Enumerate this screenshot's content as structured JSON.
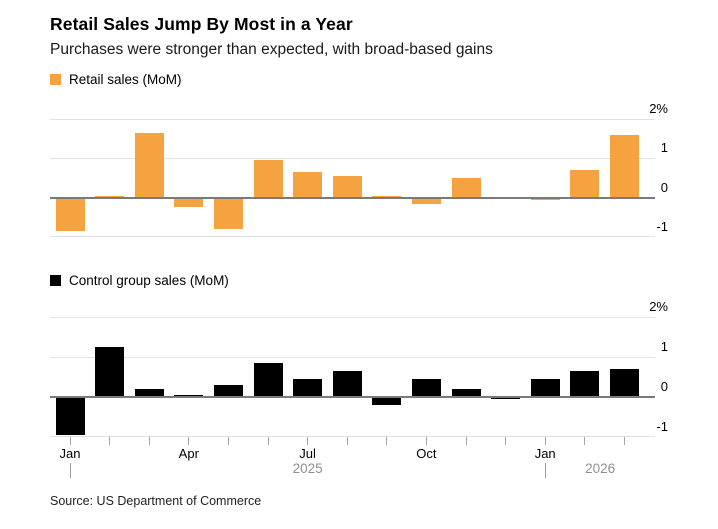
{
  "header": {
    "title": "Retail Sales Jump By Most in a Year",
    "subtitle": "Purchases were stronger than expected, with broad-based gains"
  },
  "footer": {
    "source": "Source: US Department of Commerce"
  },
  "colors": {
    "retail_orange": "#F5A340",
    "control_black": "#000000",
    "gridline": "#E2E2E2",
    "zero_line": "#7A7A7A",
    "muted_text": "#8F8F8F",
    "tick": "#A3A3A3"
  },
  "chart_data": [
    {
      "type": "bar",
      "name": "retail-sales",
      "legend_label": "Retail sales (MoM)",
      "bar_color": "#F5A340",
      "categories": [
        "Jan 2025",
        "Feb 2025",
        "Mar 2025",
        "Apr 2025",
        "May 2025",
        "Jun 2025",
        "Jul 2025",
        "Aug 2025",
        "Sep 2025",
        "Oct 2025",
        "Nov 2025",
        "Dec 2025",
        "Jan 2026",
        "Feb 2026",
        "Mar 2026"
      ],
      "values": [
        -0.85,
        0.05,
        1.65,
        -0.25,
        -0.8,
        0.95,
        0.65,
        0.55,
        0.05,
        -0.15,
        0.5,
        0.0,
        -0.05,
        0.7,
        1.6
      ],
      "ylim": [
        -1,
        2
      ],
      "yticks": [
        {
          "value": 2,
          "label": "2%"
        },
        {
          "value": 1,
          "label": "1"
        },
        {
          "value": 0,
          "label": "0"
        },
        {
          "value": -1,
          "label": "-1"
        }
      ],
      "grid": true,
      "legend_position": "top-left"
    },
    {
      "type": "bar",
      "name": "control-group-sales",
      "legend_label": "Control group sales (MoM)",
      "bar_color": "#000000",
      "categories": [
        "Jan 2025",
        "Feb 2025",
        "Mar 2025",
        "Apr 2025",
        "May 2025",
        "Jun 2025",
        "Jul 2025",
        "Aug 2025",
        "Sep 2025",
        "Oct 2025",
        "Nov 2025",
        "Dec 2025",
        "Jan 2026",
        "Feb 2026",
        "Mar 2026"
      ],
      "values": [
        -0.95,
        1.25,
        0.2,
        0.05,
        0.3,
        0.85,
        0.45,
        0.65,
        -0.2,
        0.45,
        0.2,
        -0.05,
        0.45,
        0.65,
        0.7
      ],
      "ylim": [
        -1,
        2
      ],
      "yticks": [
        {
          "value": 2,
          "label": "2%"
        },
        {
          "value": 1,
          "label": "1"
        },
        {
          "value": 0,
          "label": "0"
        },
        {
          "value": -1,
          "label": "-1"
        }
      ],
      "grid": true,
      "legend_position": "top-left"
    }
  ],
  "x_axis": {
    "month_ticks": [
      {
        "index": 0,
        "label": "Jan"
      },
      {
        "index": 3,
        "label": "Apr"
      },
      {
        "index": 6,
        "label": "Jul"
      },
      {
        "index": 9,
        "label": "Oct"
      },
      {
        "index": 12,
        "label": "Jan"
      }
    ],
    "year_row": {
      "labels": [
        "2025",
        "2026"
      ],
      "separator_indices": [
        0,
        12
      ]
    }
  }
}
